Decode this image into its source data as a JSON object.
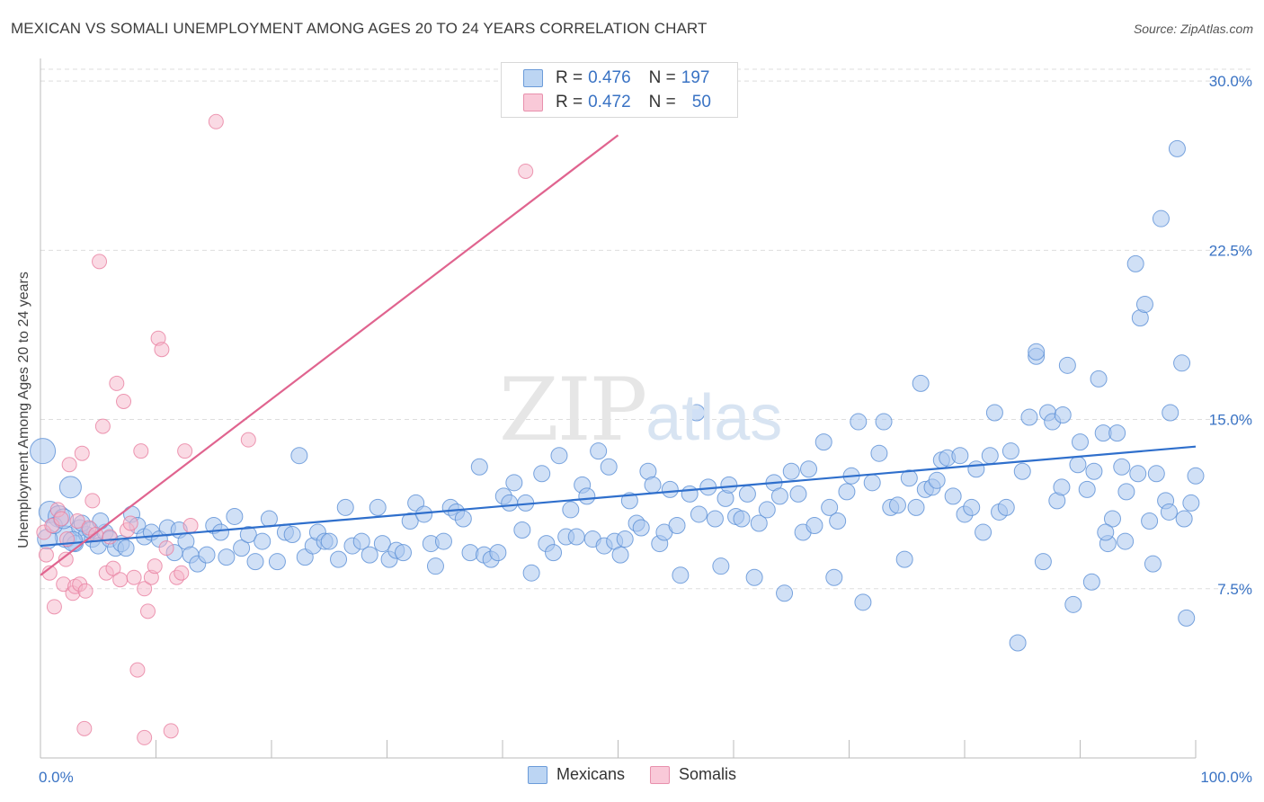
{
  "header": {
    "title": "MEXICAN VS SOMALI UNEMPLOYMENT AMONG AGES 20 TO 24 YEARS CORRELATION CHART",
    "source": "Source: ZipAtlas.com"
  },
  "watermark": {
    "zip": "ZIP",
    "atlas": "atlas"
  },
  "legend": {
    "mexicans": {
      "r_label": "R =",
      "r_value": "0.476",
      "n_label": "N =",
      "n_value": "197"
    },
    "somalis": {
      "r_label": "R =",
      "r_value": "0.472",
      "n_label": "N =",
      "n_value": "50"
    }
  },
  "colors": {
    "mexicans_fill": "#a9c7ee",
    "mexicans_stroke": "#5a8fd6",
    "mexicans_line": "#2f6fcc",
    "somalis_fill": "#f6b6ca",
    "somalis_stroke": "#e87fa0",
    "somalis_line": "#e0648f",
    "axis_text": "#3a73c4",
    "grid": "#dddddd"
  },
  "chart_data": {
    "type": "scatter",
    "title": "MEXICAN VS SOMALI UNEMPLOYMENT AMONG AGES 20 TO 24 YEARS CORRELATION CHART",
    "xlabel": "",
    "ylabel": "Unemployment Among Ages 20 to 24 years",
    "xlim": [
      0,
      100
    ],
    "ylim": [
      0,
      31
    ],
    "x_tick_labels": [
      "0.0%",
      "100.0%"
    ],
    "y_ticks": [
      7.5,
      15.0,
      22.5,
      30.0
    ],
    "y_tick_labels": [
      "7.5%",
      "15.0%",
      "22.5%",
      "30.0%"
    ],
    "grid": "horizontal dashed",
    "legend_position": "bottom-center",
    "series": [
      {
        "name": "Mexicans",
        "r": 0.476,
        "n": 197,
        "trend": {
          "x": [
            0,
            100
          ],
          "y": [
            9.4,
            13.8
          ]
        },
        "points": [
          [
            0.2,
            13.6
          ],
          [
            0.8,
            10.9
          ],
          [
            1.6,
            10.7
          ],
          [
            2.2,
            9.8
          ],
          [
            2.6,
            12.0
          ],
          [
            3.0,
            9.5
          ],
          [
            3.4,
            10.2
          ],
          [
            4.0,
            9.9
          ],
          [
            4.5,
            9.7
          ],
          [
            5.0,
            9.4
          ],
          [
            5.6,
            10.0
          ],
          [
            6.0,
            9.7
          ],
          [
            6.5,
            9.3
          ],
          [
            7.0,
            9.5
          ],
          [
            7.4,
            9.3
          ],
          [
            7.9,
            10.8
          ],
          [
            8.4,
            10.3
          ],
          [
            9.0,
            9.8
          ],
          [
            9.6,
            10.0
          ],
          [
            10.3,
            9.7
          ],
          [
            11.0,
            10.2
          ],
          [
            11.6,
            9.1
          ],
          [
            12.0,
            10.1
          ],
          [
            12.6,
            9.6
          ],
          [
            13.0,
            9.0
          ],
          [
            13.6,
            8.6
          ],
          [
            14.4,
            9.0
          ],
          [
            15.0,
            10.3
          ],
          [
            15.6,
            10.0
          ],
          [
            16.1,
            8.9
          ],
          [
            16.8,
            10.7
          ],
          [
            17.4,
            9.3
          ],
          [
            18.0,
            9.9
          ],
          [
            18.6,
            8.7
          ],
          [
            19.2,
            9.6
          ],
          [
            19.8,
            10.6
          ],
          [
            20.5,
            8.7
          ],
          [
            21.2,
            10.0
          ],
          [
            21.8,
            9.9
          ],
          [
            22.4,
            13.4
          ],
          [
            22.9,
            8.9
          ],
          [
            23.6,
            9.4
          ],
          [
            24.0,
            10.0
          ],
          [
            24.6,
            9.6
          ],
          [
            25.0,
            9.6
          ],
          [
            25.8,
            8.8
          ],
          [
            26.4,
            11.1
          ],
          [
            27.0,
            9.4
          ],
          [
            27.8,
            9.6
          ],
          [
            28.5,
            9.0
          ],
          [
            29.2,
            11.1
          ],
          [
            29.6,
            9.5
          ],
          [
            30.2,
            8.8
          ],
          [
            30.8,
            9.2
          ],
          [
            31.4,
            9.1
          ],
          [
            32.0,
            10.5
          ],
          [
            32.5,
            11.3
          ],
          [
            33.2,
            10.8
          ],
          [
            33.8,
            9.5
          ],
          [
            34.2,
            8.5
          ],
          [
            34.9,
            9.6
          ],
          [
            35.5,
            11.1
          ],
          [
            36.0,
            10.9
          ],
          [
            36.6,
            10.6
          ],
          [
            37.2,
            9.1
          ],
          [
            38.0,
            12.9
          ],
          [
            38.4,
            9.0
          ],
          [
            39.0,
            8.8
          ],
          [
            39.6,
            9.1
          ],
          [
            40.1,
            11.6
          ],
          [
            40.6,
            11.3
          ],
          [
            41.0,
            12.2
          ],
          [
            41.7,
            10.1
          ],
          [
            42.0,
            11.3
          ],
          [
            42.5,
            8.2
          ],
          [
            43.4,
            12.6
          ],
          [
            43.8,
            9.5
          ],
          [
            44.4,
            9.1
          ],
          [
            44.9,
            13.4
          ],
          [
            45.5,
            9.8
          ],
          [
            45.9,
            11.0
          ],
          [
            46.4,
            9.8
          ],
          [
            46.9,
            12.1
          ],
          [
            47.3,
            11.6
          ],
          [
            47.8,
            9.7
          ],
          [
            48.3,
            13.6
          ],
          [
            48.8,
            9.4
          ],
          [
            49.2,
            12.9
          ],
          [
            49.7,
            9.6
          ],
          [
            50.2,
            9.0
          ],
          [
            50.6,
            9.7
          ],
          [
            51.0,
            11.4
          ],
          [
            51.6,
            10.4
          ],
          [
            52.0,
            10.2
          ],
          [
            52.6,
            12.7
          ],
          [
            53.0,
            12.1
          ],
          [
            53.6,
            9.5
          ],
          [
            54.0,
            10.0
          ],
          [
            54.5,
            11.9
          ],
          [
            55.1,
            10.3
          ],
          [
            55.4,
            8.1
          ],
          [
            56.2,
            11.7
          ],
          [
            56.8,
            15.3
          ],
          [
            57.0,
            10.8
          ],
          [
            57.8,
            12.0
          ],
          [
            58.4,
            10.6
          ],
          [
            58.9,
            8.5
          ],
          [
            59.3,
            11.5
          ],
          [
            59.6,
            12.1
          ],
          [
            60.2,
            10.7
          ],
          [
            60.7,
            10.6
          ],
          [
            61.2,
            11.7
          ],
          [
            61.8,
            8.0
          ],
          [
            62.2,
            10.4
          ],
          [
            62.9,
            11.0
          ],
          [
            63.5,
            12.2
          ],
          [
            64.0,
            11.6
          ],
          [
            64.4,
            7.3
          ],
          [
            65.0,
            12.7
          ],
          [
            65.6,
            11.7
          ],
          [
            66.0,
            10.0
          ],
          [
            66.5,
            12.8
          ],
          [
            67.0,
            10.3
          ],
          [
            67.8,
            14.0
          ],
          [
            68.3,
            11.1
          ],
          [
            68.7,
            8.0
          ],
          [
            69.0,
            10.5
          ],
          [
            69.8,
            11.8
          ],
          [
            70.2,
            12.5
          ],
          [
            70.8,
            14.9
          ],
          [
            71.2,
            6.9
          ],
          [
            72.0,
            12.2
          ],
          [
            72.6,
            13.5
          ],
          [
            73.0,
            14.9
          ],
          [
            73.6,
            11.1
          ],
          [
            74.2,
            11.2
          ],
          [
            74.8,
            8.8
          ],
          [
            75.2,
            12.4
          ],
          [
            75.8,
            11.1
          ],
          [
            76.2,
            16.6
          ],
          [
            76.6,
            11.9
          ],
          [
            77.2,
            12.0
          ],
          [
            77.6,
            12.3
          ],
          [
            78.0,
            13.2
          ],
          [
            78.5,
            13.3
          ],
          [
            79.0,
            11.6
          ],
          [
            79.6,
            13.4
          ],
          [
            80.0,
            10.8
          ],
          [
            80.6,
            11.1
          ],
          [
            81.0,
            12.8
          ],
          [
            81.6,
            10.0
          ],
          [
            82.2,
            13.4
          ],
          [
            82.6,
            15.3
          ],
          [
            83.0,
            10.9
          ],
          [
            83.6,
            11.1
          ],
          [
            84.0,
            13.6
          ],
          [
            84.6,
            5.1
          ],
          [
            85.0,
            12.7
          ],
          [
            85.6,
            15.1
          ],
          [
            86.2,
            17.8
          ],
          [
            86.8,
            8.7
          ],
          [
            87.2,
            15.3
          ],
          [
            87.6,
            14.9
          ],
          [
            88.0,
            11.4
          ],
          [
            88.4,
            12.0
          ],
          [
            88.9,
            17.4
          ],
          [
            89.4,
            6.8
          ],
          [
            90.0,
            14.0
          ],
          [
            90.6,
            11.9
          ],
          [
            91.0,
            7.8
          ],
          [
            91.6,
            16.8
          ],
          [
            92.0,
            14.4
          ],
          [
            92.4,
            9.5
          ],
          [
            92.8,
            10.6
          ],
          [
            93.2,
            14.4
          ],
          [
            93.6,
            12.9
          ],
          [
            94.0,
            11.8
          ],
          [
            94.8,
            21.9
          ],
          [
            95.2,
            19.5
          ],
          [
            95.6,
            20.1
          ],
          [
            96.0,
            10.5
          ],
          [
            96.6,
            12.6
          ],
          [
            97.0,
            23.9
          ],
          [
            97.4,
            11.4
          ],
          [
            97.8,
            15.3
          ],
          [
            98.4,
            27.0
          ],
          [
            98.8,
            17.5
          ],
          [
            99.2,
            6.2
          ],
          [
            99.6,
            11.3
          ],
          [
            100.0,
            12.5
          ],
          [
            86.2,
            18.0
          ],
          [
            88.5,
            15.2
          ],
          [
            89.8,
            13.0
          ],
          [
            91.2,
            12.7
          ],
          [
            92.2,
            10.0
          ],
          [
            93.9,
            9.6
          ],
          [
            95.0,
            12.6
          ],
          [
            96.3,
            8.6
          ],
          [
            97.7,
            10.9
          ],
          [
            99.0,
            10.6
          ],
          [
            0.6,
            9.7
          ],
          [
            1.2,
            10.3
          ],
          [
            2.0,
            10.6
          ],
          [
            2.8,
            9.6
          ],
          [
            3.6,
            10.4
          ],
          [
            4.3,
            10.1
          ],
          [
            5.2,
            10.5
          ]
        ]
      },
      {
        "name": "Somalis",
        "r": 0.472,
        "n": 50,
        "trend": {
          "x": [
            0,
            50.0
          ],
          "y": [
            8.1,
            27.6
          ]
        },
        "points": [
          [
            0.3,
            10.0
          ],
          [
            0.5,
            9.0
          ],
          [
            0.8,
            8.2
          ],
          [
            1.0,
            10.3
          ],
          [
            1.2,
            6.7
          ],
          [
            1.5,
            11.0
          ],
          [
            1.8,
            10.6
          ],
          [
            2.0,
            7.7
          ],
          [
            2.3,
            9.7
          ],
          [
            2.5,
            13.0
          ],
          [
            2.8,
            7.3
          ],
          [
            3.0,
            7.6
          ],
          [
            3.2,
            10.5
          ],
          [
            3.4,
            7.7
          ],
          [
            3.6,
            13.5
          ],
          [
            3.9,
            7.4
          ],
          [
            4.2,
            10.2
          ],
          [
            4.5,
            11.4
          ],
          [
            4.8,
            9.9
          ],
          [
            5.1,
            22.0
          ],
          [
            5.4,
            14.7
          ],
          [
            5.7,
            8.2
          ],
          [
            6.0,
            9.8
          ],
          [
            6.3,
            8.4
          ],
          [
            6.6,
            16.6
          ],
          [
            6.9,
            7.9
          ],
          [
            7.2,
            15.8
          ],
          [
            7.5,
            10.1
          ],
          [
            7.8,
            10.4
          ],
          [
            8.1,
            8.0
          ],
          [
            8.4,
            3.9
          ],
          [
            8.7,
            13.6
          ],
          [
            9.0,
            7.5
          ],
          [
            9.3,
            6.5
          ],
          [
            9.6,
            8.0
          ],
          [
            9.9,
            8.5
          ],
          [
            10.2,
            18.6
          ],
          [
            10.5,
            18.1
          ],
          [
            10.9,
            9.3
          ],
          [
            11.3,
            1.2
          ],
          [
            11.8,
            8.0
          ],
          [
            12.2,
            8.2
          ],
          [
            12.5,
            13.6
          ],
          [
            13.0,
            10.3
          ],
          [
            15.2,
            28.2
          ],
          [
            18.0,
            14.1
          ],
          [
            42.0,
            26.0
          ],
          [
            3.8,
            1.3
          ],
          [
            9.0,
            0.9
          ],
          [
            2.2,
            8.8
          ]
        ]
      }
    ]
  }
}
